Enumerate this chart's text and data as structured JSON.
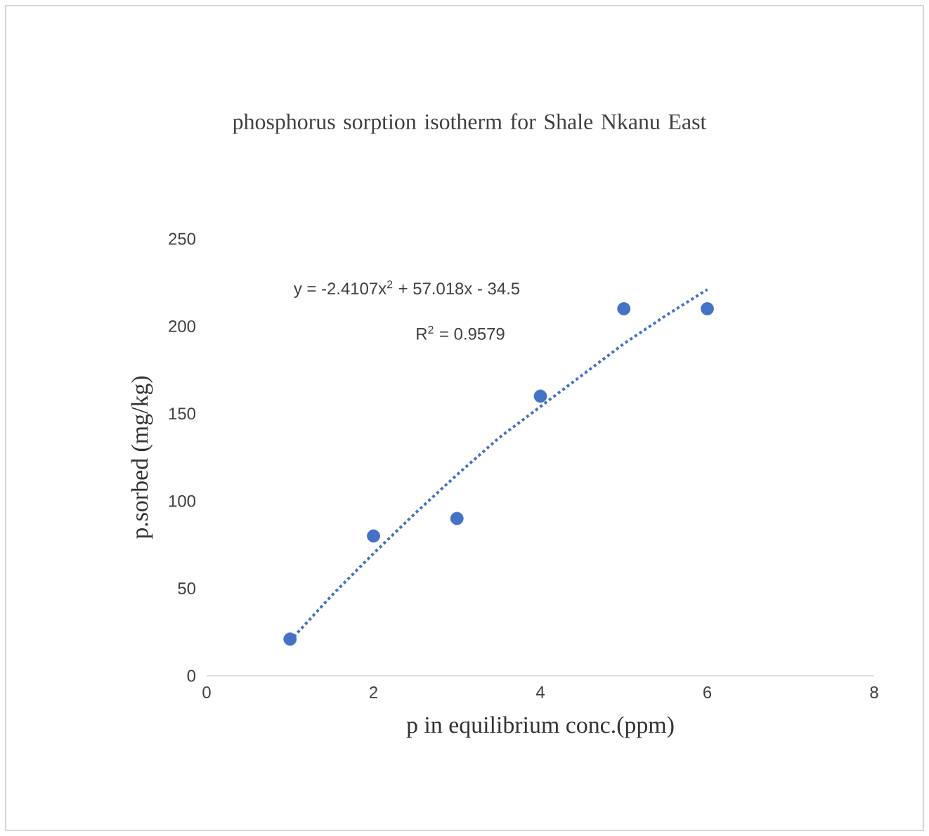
{
  "chart_data": {
    "type": "scatter",
    "title": "phosphorus sorption isotherm for Shale Nkanu East",
    "xlabel": "p in equilibrium conc.(ppm)",
    "ylabel": "p.sorbed (mg/kg)",
    "xlim": [
      0,
      8
    ],
    "xticks": [
      0,
      2,
      4,
      6,
      8
    ],
    "ylim": [
      0,
      250
    ],
    "yticks": [
      0,
      50,
      100,
      150,
      200,
      250
    ],
    "series": [
      {
        "color": "#4472c4",
        "marker": "circle",
        "x": [
          1,
          2,
          3,
          4,
          5,
          6
        ],
        "values": [
          21,
          80,
          90,
          160,
          210,
          210
        ]
      },
      {
        "type": "line",
        "color": "#4472c4",
        "marker": "none",
        "line_style": "dotted",
        "x": [
          1,
          1.5,
          2,
          2.5,
          3,
          3.5,
          4,
          4.5,
          5,
          5.5,
          6
        ],
        "values": [
          20,
          46,
          70,
          93,
          115,
          136,
          154,
          172,
          190,
          206,
          221
        ]
      }
    ],
    "annotations": [
      "y = -2.4107x$^{2}$ + 57.018x - 34.5",
      "R$^{2}$ = 0.9579"
    ]
  }
}
